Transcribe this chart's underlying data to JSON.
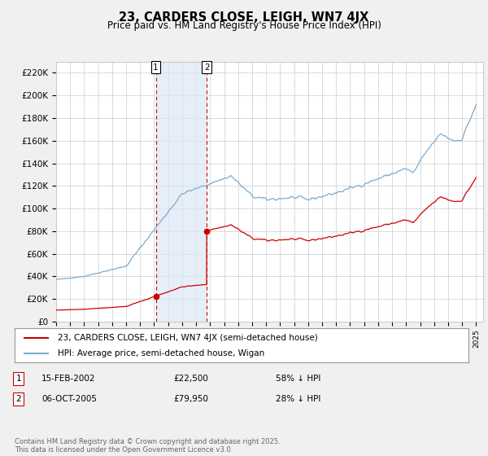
{
  "title": "23, CARDERS CLOSE, LEIGH, WN7 4JX",
  "subtitle": "Price paid vs. HM Land Registry's House Price Index (HPI)",
  "ylabel_ticks": [
    "£0",
    "£20K",
    "£40K",
    "£60K",
    "£80K",
    "£100K",
    "£120K",
    "£140K",
    "£160K",
    "£180K",
    "£200K",
    "£220K"
  ],
  "ytick_values": [
    0,
    20000,
    40000,
    60000,
    80000,
    100000,
    120000,
    140000,
    160000,
    180000,
    200000,
    220000
  ],
  "ylim": [
    0,
    230000
  ],
  "xlim_start": 1995.0,
  "xlim_end": 2025.5,
  "purchase1_date": 2002.12,
  "purchase1_price": 22500,
  "purchase2_date": 2005.76,
  "purchase2_price": 79950,
  "legend_line1": "23, CARDERS CLOSE, LEIGH, WN7 4JX (semi-detached house)",
  "legend_line2": "HPI: Average price, semi-detached house, Wigan",
  "color_red": "#cc0000",
  "color_blue": "#7aabcf",
  "color_bg": "#f0f0f0",
  "color_plot_bg": "#ffffff",
  "grid_color": "#cccccc",
  "shade_color": "#dce8f5",
  "footer": "Contains HM Land Registry data © Crown copyright and database right 2025.\nThis data is licensed under the Open Government Licence v3.0."
}
